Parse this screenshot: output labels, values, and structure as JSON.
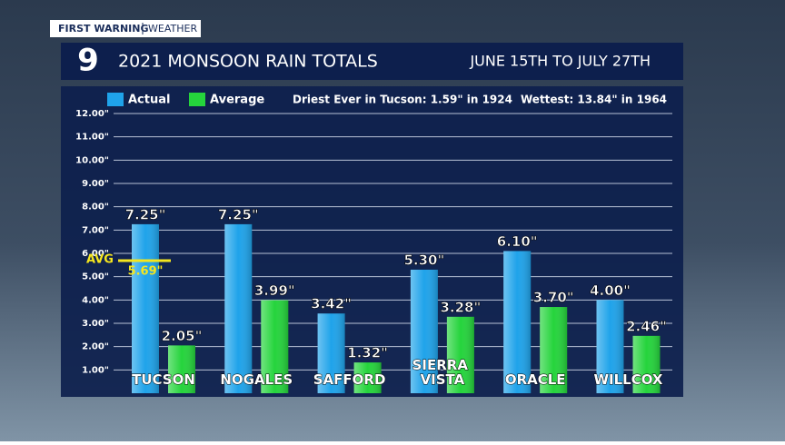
{
  "header": {
    "brand": "FIRST WARNING",
    "section": "WEATHER",
    "logo": "9"
  },
  "chart_data": {
    "type": "bar",
    "title": "2021 MONSOON RAIN TOTALS",
    "subtitle": "JUNE 15TH TO JULY 27TH",
    "annotations": [
      "Driest Ever in Tucson: 1.59\" in 1924",
      "Wettest: 13.84\" in 1964"
    ],
    "categories": [
      "TUCSON",
      "NOGALES",
      "SAFFORD",
      "SIERRA VISTA",
      "ORACLE",
      "WILLCOX"
    ],
    "series": [
      {
        "name": "Actual",
        "color": "#1fa3ea",
        "values": [
          7.25,
          7.25,
          3.42,
          5.3,
          6.1,
          4.0
        ],
        "value_labels": [
          "7.25\"",
          "7.25\"",
          "3.42\"",
          "5.30\"",
          "6.10\"",
          "4.00\""
        ]
      },
      {
        "name": "Average",
        "color": "#25d43c",
        "values": [
          2.05,
          3.99,
          1.32,
          3.28,
          3.7,
          2.46
        ],
        "value_labels": [
          "2.05\"",
          "3.99\"",
          "1.32\"",
          "3.28\"",
          "3.70\"",
          "2.46\""
        ]
      }
    ],
    "reference_line": {
      "label": "AVG",
      "value": 5.69,
      "value_label": "5.69\"",
      "color": "#f5e61e"
    },
    "ylim": [
      0,
      12
    ],
    "yticks": [
      {
        "value": 1,
        "label": "1.00\""
      },
      {
        "value": 2,
        "label": "2.00\""
      },
      {
        "value": 3,
        "label": "3.00\""
      },
      {
        "value": 4,
        "label": "4.00\""
      },
      {
        "value": 5,
        "label": "5.00\""
      },
      {
        "value": 6,
        "label": "6.00\""
      },
      {
        "value": 7,
        "label": "7.00\""
      },
      {
        "value": 8,
        "label": "8.00\""
      },
      {
        "value": 9,
        "label": "9.00\""
      },
      {
        "value": 10,
        "label": "10.00\""
      },
      {
        "value": 11,
        "label": "11.00\""
      },
      {
        "value": 12,
        "label": "12.00\""
      }
    ],
    "grid": true
  }
}
